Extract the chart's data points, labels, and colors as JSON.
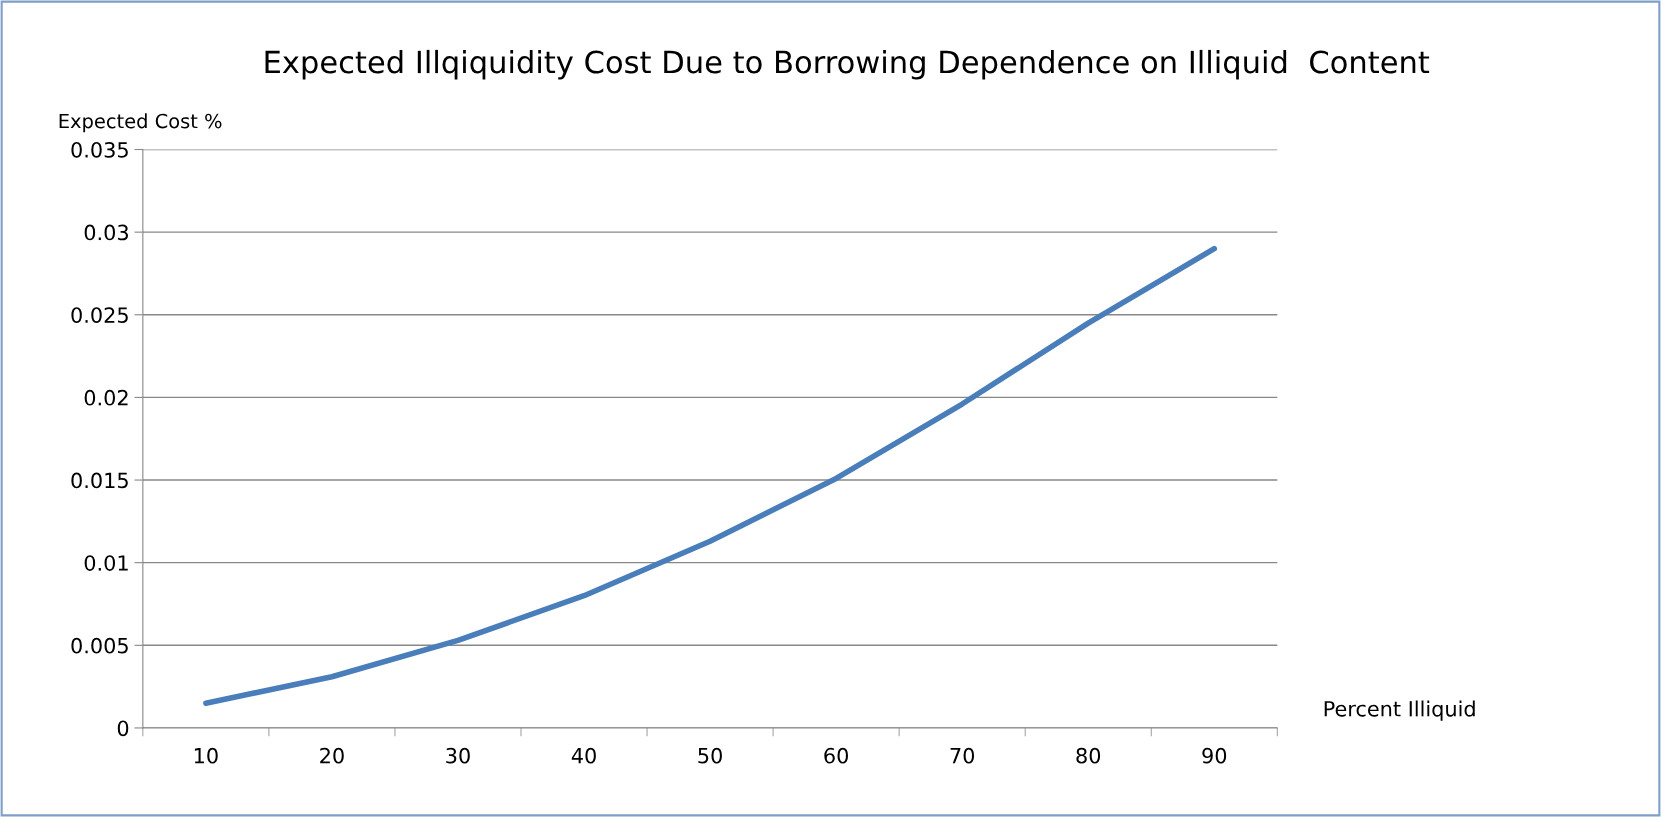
{
  "chart_data": {
    "type": "line",
    "title": "Expected Illqiquidity Cost Due to Borrowing Dependence on Illiquid  Content",
    "xlabel": "Percent Illiquid",
    "ylabel": "Expected Cost %",
    "categories": [
      "10",
      "20",
      "30",
      "40",
      "50",
      "60",
      "70",
      "80",
      "90"
    ],
    "series": [
      {
        "color": "#4a7ebb",
        "values": [
          0.0015,
          0.0031,
          0.0053,
          0.008,
          0.0113,
          0.0151,
          0.0196,
          0.0245,
          0.029
        ]
      }
    ],
    "ylim": [
      0,
      0.035
    ],
    "yticks": [
      0,
      0.005,
      0.01,
      0.015,
      0.02,
      0.025,
      0.03,
      0.035
    ],
    "grid": "y",
    "legend": false,
    "marker": "none",
    "line_style": "solid"
  }
}
